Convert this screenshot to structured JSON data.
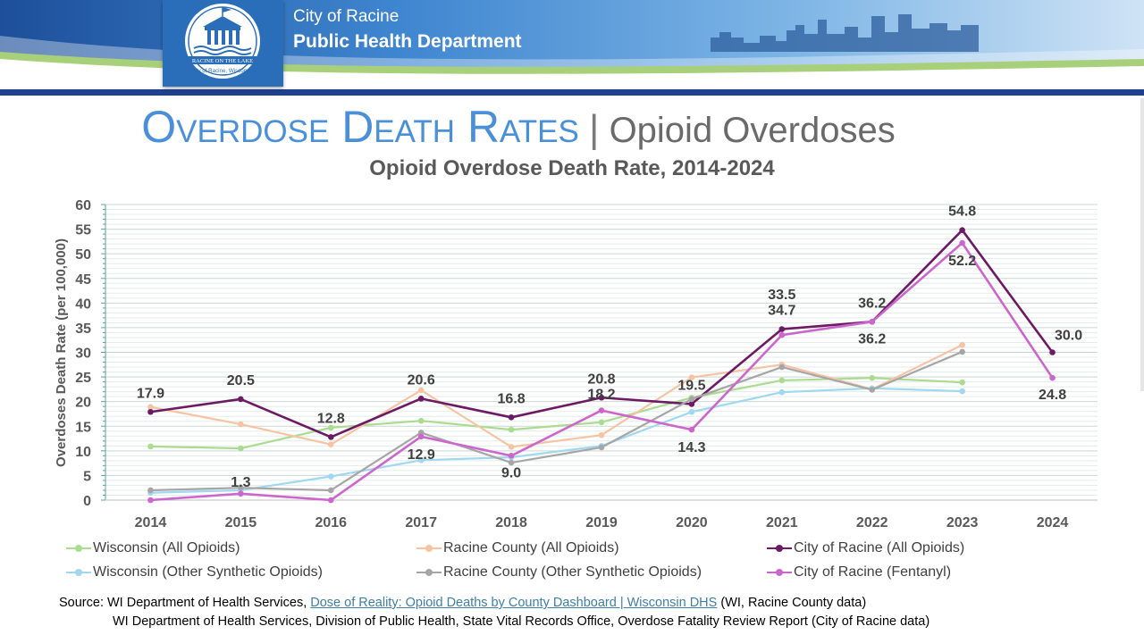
{
  "header": {
    "line1": "City of Racine",
    "line2": "Public Health Department",
    "logo_text_top": "RACINE ON THE LAKE",
    "logo_text_bottom": "City of Racine, Wisconsin"
  },
  "slide_title": {
    "main": "Overdose Death Rates",
    "separator": "|",
    "sub": "Opioid Overdoses"
  },
  "chart_data": {
    "type": "line",
    "title": "Opioid Overdose Death Rate, 2014-2024",
    "xlabel": "",
    "ylabel": "Overdoses Death Rate (per 100,000)",
    "ylim": [
      0,
      60
    ],
    "y_ticks": [
      "0",
      "5",
      "10",
      "15",
      "20",
      "25",
      "30",
      "35",
      "40",
      "45",
      "50",
      "55",
      "60"
    ],
    "grid": true,
    "legend_position": "bottom",
    "categories": [
      "2014",
      "2015",
      "2016",
      "2017",
      "2018",
      "2019",
      "2020",
      "2021",
      "2022",
      "2023",
      "2024"
    ],
    "series": [
      {
        "name": "Wisconsin (All Opioids)",
        "color": "#a9dc8f",
        "values": [
          10.9,
          10.5,
          14.7,
          16.1,
          14.3,
          15.8,
          20.8,
          24.3,
          24.8,
          23.9,
          null
        ]
      },
      {
        "name": "Racine County (All Opioids)",
        "color": "#f6c4a3",
        "values": [
          18.9,
          15.4,
          11.3,
          22.3,
          10.8,
          13.2,
          24.9,
          27.5,
          22.5,
          31.5,
          null
        ]
      },
      {
        "name": "City of Racine (All Opioids)",
        "color": "#6d1a64",
        "values": [
          17.9,
          20.5,
          12.8,
          20.6,
          16.8,
          20.8,
          19.5,
          34.7,
          36.2,
          54.8,
          30.0
        ],
        "labels": [
          "17.9",
          "20.5",
          "12.8",
          "20.6",
          "16.8",
          "20.8",
          "19.5",
          "34.7",
          "36.2",
          "54.8",
          "30.0"
        ]
      },
      {
        "name": "Wisconsin (Other Synthetic Opioids)",
        "color": "#9fd8f0",
        "values": [
          1.5,
          2.0,
          4.8,
          8.1,
          8.7,
          11.0,
          17.9,
          21.9,
          22.7,
          22.1,
          null
        ]
      },
      {
        "name": "Racine County (Other Synthetic Opioids)",
        "color": "#a6a6a6",
        "values": [
          2.0,
          2.5,
          2.0,
          13.7,
          7.6,
          10.7,
          20.5,
          27.0,
          22.4,
          30.1,
          null
        ]
      },
      {
        "name": "City of Racine (Fentanyl)",
        "color": "#cc66cc",
        "values": [
          0.0,
          1.3,
          0.0,
          12.9,
          9.0,
          18.2,
          14.3,
          33.5,
          36.2,
          52.2,
          24.8
        ],
        "labels": [
          null,
          "1.3",
          null,
          "12.9",
          "9.0",
          "18.2",
          "14.3",
          "33.5",
          "36.2",
          "52.2",
          "24.8"
        ]
      }
    ]
  },
  "sources": {
    "line1_prefix": "Source: WI Department of Health Services, ",
    "line1_link": "Dose of Reality: Opioid Deaths by County Dashboard | Wisconsin DHS",
    "line1_suffix": " (WI, Racine County data)",
    "line2": "WI Department of Health Services, Division of Public Health, State Vital Records Office, Overdose Fatality Review Report (City of Racine data)"
  }
}
